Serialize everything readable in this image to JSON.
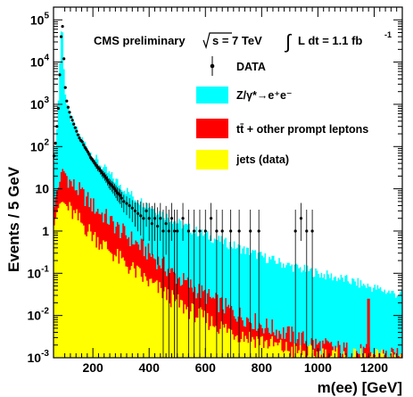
{
  "chart_data": {
    "type": "area",
    "title": "",
    "annotation": {
      "prefix": "CMS preliminary",
      "energy": "s = 7 TeV",
      "lumi": "L dt = 1.1 fb",
      "lumi_exp": "-1"
    },
    "xlabel": "m(ee) [GeV]",
    "ylabel": "Events / 5 GeV",
    "xlim": [
      60,
      1300
    ],
    "ylim": [
      0.001,
      200000
    ],
    "log_y": true,
    "bin_width": 5,
    "x_ticks": [
      {
        "value": 200,
        "label": "200"
      },
      {
        "value": 400,
        "label": "400"
      },
      {
        "value": 600,
        "label": "600"
      },
      {
        "value": 800,
        "label": "800"
      },
      {
        "value": 1000,
        "label": "1000"
      },
      {
        "value": 1200,
        "label": "1200"
      }
    ],
    "y_ticks": [
      {
        "value": 100000,
        "base": "10",
        "exp": "5"
      },
      {
        "value": 10000,
        "base": "10",
        "exp": "4"
      },
      {
        "value": 1000,
        "base": "10",
        "exp": "3"
      },
      {
        "value": 100,
        "base": "10",
        "exp": "2"
      },
      {
        "value": 10,
        "base": "10",
        "exp": ""
      },
      {
        "value": 1,
        "base": "1",
        "exp": ""
      },
      {
        "value": 0.1,
        "base": "10",
        "exp": "-1"
      },
      {
        "value": 0.01,
        "base": "10",
        "exp": "-2"
      },
      {
        "value": 0.001,
        "base": "10",
        "exp": "-3"
      }
    ],
    "legend": {
      "position": "top-right",
      "entries": [
        {
          "key": "data",
          "label": "DATA",
          "color": "#000000"
        },
        {
          "key": "dy",
          "label": "Z/γ*→e⁺e⁻",
          "color": "#00ffff"
        },
        {
          "key": "ttbar",
          "label": "tt̄ + other prompt leptons",
          "color": "#ff0000"
        },
        {
          "key": "jets",
          "label": "jets (data)",
          "color": "#ffff00"
        }
      ]
    },
    "series": [
      {
        "key": "jets",
        "color": "#ffff00",
        "profile": [
          [
            60,
            1.2
          ],
          [
            70,
            2.5
          ],
          [
            80,
            4
          ],
          [
            90,
            5
          ],
          [
            100,
            4.5
          ],
          [
            120,
            3
          ],
          [
            150,
            1.8
          ],
          [
            200,
            0.8
          ],
          [
            250,
            0.4
          ],
          [
            300,
            0.2
          ],
          [
            400,
            0.06
          ],
          [
            500,
            0.02
          ],
          [
            600,
            0.008
          ],
          [
            700,
            0.004
          ],
          [
            800,
            0.0025
          ],
          [
            900,
            0.0015
          ],
          [
            1000,
            0.0012
          ],
          [
            1100,
            0.001
          ],
          [
            1300,
            0.001
          ]
        ]
      },
      {
        "key": "ttbar",
        "color": "#ff0000",
        "profile": [
          [
            60,
            3
          ],
          [
            70,
            8
          ],
          [
            80,
            12
          ],
          [
            90,
            30
          ],
          [
            100,
            25
          ],
          [
            120,
            14
          ],
          [
            150,
            9
          ],
          [
            200,
            4
          ],
          [
            250,
            2
          ],
          [
            300,
            1
          ],
          [
            400,
            0.3
          ],
          [
            500,
            0.08
          ],
          [
            600,
            0.03
          ],
          [
            700,
            0.012
          ],
          [
            800,
            0.006
          ],
          [
            900,
            0.0035
          ],
          [
            1000,
            0.002
          ],
          [
            1100,
            0.0015
          ],
          [
            1200,
            0.0012
          ],
          [
            1300,
            0.001
          ]
        ]
      },
      {
        "key": "dy",
        "color": "#00ffff",
        "profile": [
          [
            60,
            40
          ],
          [
            65,
            60
          ],
          [
            70,
            150
          ],
          [
            75,
            500
          ],
          [
            80,
            3000
          ],
          [
            85,
            30000
          ],
          [
            88,
            60000
          ],
          [
            90,
            80000
          ],
          [
            92,
            60000
          ],
          [
            95,
            20000
          ],
          [
            100,
            2500
          ],
          [
            105,
            1200
          ],
          [
            110,
            800
          ],
          [
            120,
            500
          ],
          [
            140,
            250
          ],
          [
            160,
            150
          ],
          [
            180,
            100
          ],
          [
            200,
            60
          ],
          [
            250,
            25
          ],
          [
            300,
            12
          ],
          [
            350,
            6
          ],
          [
            400,
            4
          ],
          [
            450,
            2.5
          ],
          [
            500,
            1.6
          ],
          [
            550,
            1.1
          ],
          [
            600,
            0.8
          ],
          [
            700,
            0.45
          ],
          [
            800,
            0.25
          ],
          [
            900,
            0.15
          ],
          [
            1000,
            0.1
          ],
          [
            1100,
            0.07
          ],
          [
            1200,
            0.045
          ],
          [
            1300,
            0.03
          ]
        ]
      }
    ],
    "spikes": [
      {
        "x": 1175,
        "y": 0.025,
        "color": "#ff0000"
      },
      {
        "x": 1180,
        "y": 0.025,
        "color": "#ff0000"
      }
    ],
    "data_points": [
      [
        62,
        60
      ],
      [
        67,
        120
      ],
      [
        72,
        300
      ],
      [
        77,
        800
      ],
      [
        82,
        5000
      ],
      [
        87,
        40000
      ],
      [
        92,
        70000
      ],
      [
        97,
        12000
      ],
      [
        102,
        2500
      ],
      [
        107,
        1200
      ],
      [
        112,
        850
      ],
      [
        117,
        650
      ],
      [
        122,
        500
      ],
      [
        127,
        420
      ],
      [
        132,
        340
      ],
      [
        137,
        280
      ],
      [
        142,
        230
      ],
      [
        147,
        190
      ],
      [
        152,
        160
      ],
      [
        157,
        140
      ],
      [
        162,
        130
      ],
      [
        167,
        110
      ],
      [
        172,
        95
      ],
      [
        177,
        85
      ],
      [
        182,
        75
      ],
      [
        187,
        65
      ],
      [
        192,
        55
      ],
      [
        197,
        50
      ],
      [
        202,
        45
      ],
      [
        207,
        40
      ],
      [
        212,
        36
      ],
      [
        217,
        32
      ],
      [
        222,
        30
      ],
      [
        227,
        27
      ],
      [
        232,
        24
      ],
      [
        237,
        22
      ],
      [
        242,
        20
      ],
      [
        247,
        18
      ],
      [
        252,
        16
      ],
      [
        257,
        14
      ],
      [
        262,
        13
      ],
      [
        267,
        12
      ],
      [
        272,
        11
      ],
      [
        277,
        10
      ],
      [
        282,
        9
      ],
      [
        287,
        8
      ],
      [
        292,
        7.5
      ],
      [
        297,
        7
      ],
      [
        302,
        6
      ],
      [
        310,
        5
      ],
      [
        320,
        4.5
      ],
      [
        330,
        4
      ],
      [
        340,
        3.5
      ],
      [
        350,
        3
      ],
      [
        360,
        2.6
      ],
      [
        370,
        2.3
      ],
      [
        380,
        2
      ],
      [
        390,
        3
      ],
      [
        400,
        2
      ],
      [
        410,
        1.5
      ],
      [
        420,
        2
      ],
      [
        430,
        1.3
      ],
      [
        440,
        2
      ],
      [
        450,
        1
      ],
      [
        460,
        1.5
      ],
      [
        470,
        1
      ],
      [
        480,
        2
      ],
      [
        490,
        1
      ],
      [
        500,
        1
      ],
      [
        520,
        2
      ],
      [
        540,
        1
      ],
      [
        560,
        1
      ],
      [
        580,
        1
      ],
      [
        600,
        1
      ],
      [
        620,
        2
      ],
      [
        640,
        1
      ],
      [
        660,
        1
      ],
      [
        690,
        1
      ],
      [
        720,
        1
      ],
      [
        760,
        1
      ],
      [
        790,
        1
      ],
      [
        920,
        1
      ],
      [
        960,
        1
      ],
      [
        980,
        1
      ],
      [
        940,
        2
      ]
    ]
  }
}
